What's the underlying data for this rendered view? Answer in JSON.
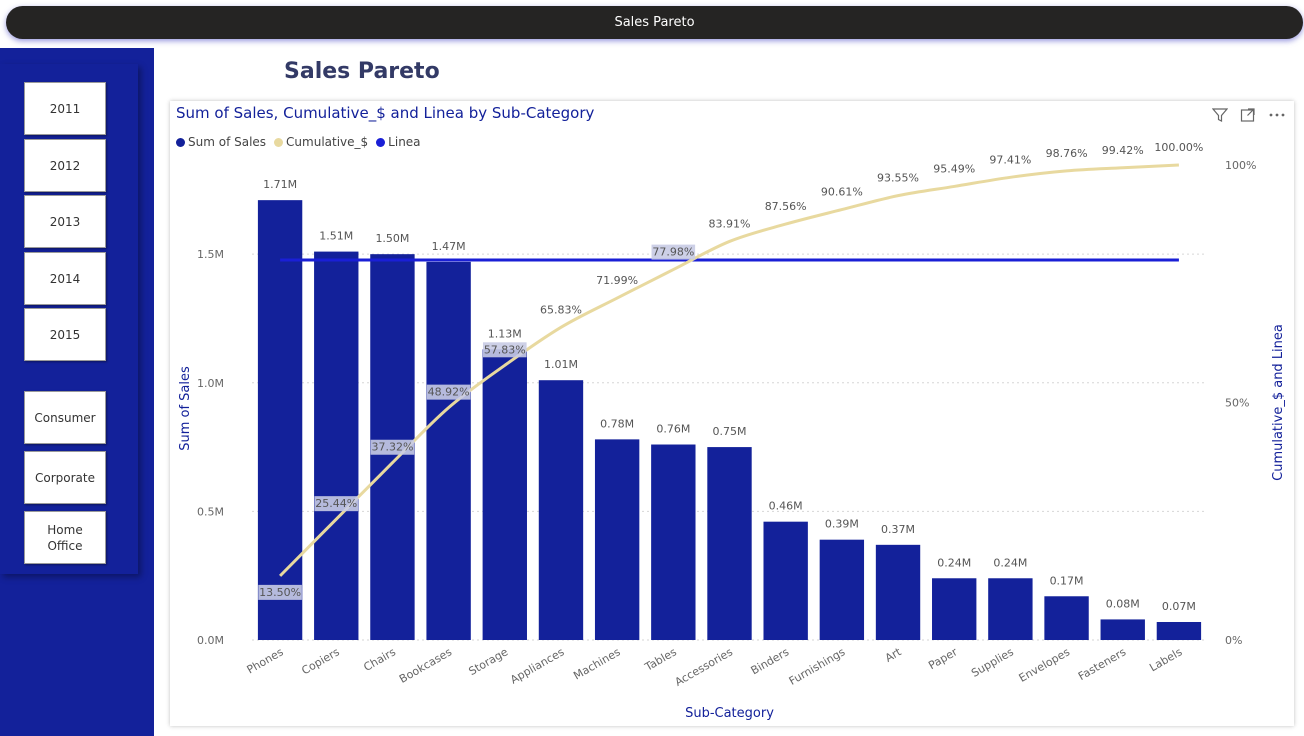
{
  "topbar": {
    "title": "Sales Pareto"
  },
  "page": {
    "title": "Sales Pareto"
  },
  "slicers": {
    "years": [
      "2011",
      "2012",
      "2013",
      "2014",
      "2015"
    ],
    "segments": [
      "Consumer",
      "Corporate",
      "Home Office"
    ]
  },
  "visual": {
    "title": "Sum of Sales, Cumulative_$ and Linea by Sub-Category",
    "legend": [
      {
        "label": "Sum of Sales",
        "color": "#13219a"
      },
      {
        "label": "Cumulative_$",
        "color": "#e8d99f"
      },
      {
        "label": "Linea",
        "color": "#1a1fd6"
      }
    ],
    "icons": [
      "filter-icon",
      "focus-mode-icon",
      "more-options-icon"
    ]
  },
  "chart_data": {
    "type": "bar",
    "title": "Sum of Sales, Cumulative_$ and Linea by Sub-Category",
    "xlabel": "Sub-Category",
    "ylabel": "Sum of Sales",
    "y2label": "Cumulative_$ and Linea",
    "categories": [
      "Phones",
      "Copiers",
      "Chairs",
      "Bookcases",
      "Storage",
      "Appliances",
      "Machines",
      "Tables",
      "Accessories",
      "Binders",
      "Furnishings",
      "Art",
      "Paper",
      "Supplies",
      "Envelopes",
      "Fasteners",
      "Labels"
    ],
    "series": [
      {
        "name": "Sum of Sales",
        "axis": "left",
        "values": [
          1.71,
          1.51,
          1.5,
          1.47,
          1.13,
          1.01,
          0.78,
          0.76,
          0.75,
          0.46,
          0.39,
          0.37,
          0.24,
          0.24,
          0.17,
          0.08,
          0.07
        ],
        "labels": [
          "1.71M",
          "1.51M",
          "1.50M",
          "1.47M",
          "1.13M",
          "1.01M",
          "0.78M",
          "0.76M",
          "0.75M",
          "0.46M",
          "0.39M",
          "0.37M",
          "0.24M",
          "0.24M",
          "0.17M",
          "0.08M",
          "0.07M"
        ]
      },
      {
        "name": "Cumulative_$",
        "axis": "right",
        "values": [
          13.5,
          25.44,
          37.32,
          48.92,
          57.83,
          65.83,
          71.99,
          77.98,
          83.91,
          87.56,
          90.61,
          93.55,
          95.49,
          97.41,
          98.76,
          99.42,
          100.0
        ],
        "labels": [
          "13.50%",
          "25.44%",
          "37.32%",
          "48.92%",
          "57.83%",
          "65.83%",
          "71.99%",
          "77.98%",
          "83.91%",
          "87.56%",
          "90.61%",
          "93.55%",
          "95.49%",
          "97.41%",
          "98.76%",
          "99.42%",
          "100.00%"
        ]
      },
      {
        "name": "Linea",
        "axis": "right",
        "value": 80
      }
    ],
    "y_ticks": [
      "0.0M",
      "0.5M",
      "1.0M",
      "1.5M"
    ],
    "y_tick_values": [
      0,
      0.5,
      1.0,
      1.5
    ],
    "y2_ticks": [
      "0%",
      "50%",
      "100%"
    ],
    "y2_tick_values": [
      0,
      50,
      100
    ],
    "ylim": [
      0,
      1.8
    ],
    "y2lim": [
      0,
      100
    ],
    "grid": true,
    "legend_position": "top-left"
  }
}
